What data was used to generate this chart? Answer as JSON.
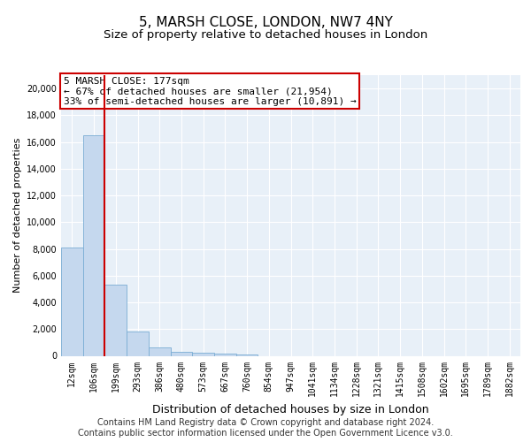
{
  "title": "5, MARSH CLOSE, LONDON, NW7 4NY",
  "subtitle": "Size of property relative to detached houses in London",
  "xlabel": "Distribution of detached houses by size in London",
  "ylabel": "Number of detached properties",
  "bar_color": "#c5d8ee",
  "bar_edge_color": "#7aadd4",
  "vline_color": "#cc0000",
  "vline_x": 1.5,
  "annotation_text": "5 MARSH CLOSE: 177sqm\n← 67% of detached houses are smaller (21,954)\n33% of semi-detached houses are larger (10,891) →",
  "annotation_box_color": "#ffffff",
  "annotation_box_edge": "#cc0000",
  "footer": "Contains HM Land Registry data © Crown copyright and database right 2024.\nContains public sector information licensed under the Open Government Licence v3.0.",
  "categories": [
    "12sqm",
    "106sqm",
    "199sqm",
    "293sqm",
    "386sqm",
    "480sqm",
    "573sqm",
    "667sqm",
    "760sqm",
    "854sqm",
    "947sqm",
    "1041sqm",
    "1134sqm",
    "1228sqm",
    "1321sqm",
    "1415sqm",
    "1508sqm",
    "1602sqm",
    "1695sqm",
    "1789sqm",
    "1882sqm"
  ],
  "values": [
    8100,
    16500,
    5300,
    1850,
    650,
    320,
    220,
    175,
    125,
    0,
    0,
    0,
    0,
    0,
    0,
    0,
    0,
    0,
    0,
    0,
    0
  ],
  "ylim": [
    0,
    21000
  ],
  "yticks": [
    0,
    2000,
    4000,
    6000,
    8000,
    10000,
    12000,
    14000,
    16000,
    18000,
    20000
  ],
  "background_color": "#e8f0f8",
  "grid_color": "#ffffff",
  "title_fontsize": 11,
  "subtitle_fontsize": 9.5,
  "ylabel_fontsize": 8,
  "xlabel_fontsize": 9,
  "tick_fontsize": 7,
  "annot_fontsize": 8,
  "footer_fontsize": 7
}
